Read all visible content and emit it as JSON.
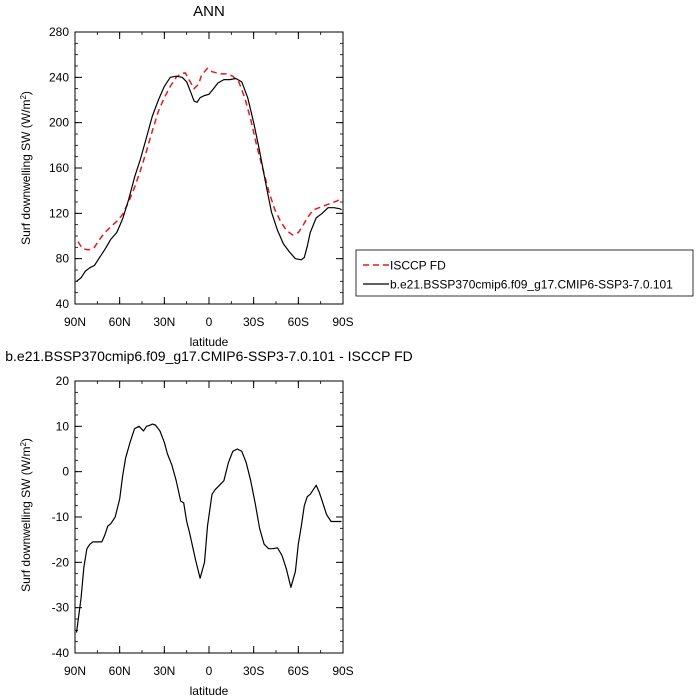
{
  "chart_data": [
    {
      "type": "line",
      "title": "ANN",
      "xlabel": "latitude",
      "ylabel": "Surf downwelling SW (W/m²)",
      "ylabel_main": "Surf downwelling SW (W/m",
      "ylabel_sup": "2",
      "ylabel_tail": ")",
      "xlim": [
        90,
        -90
      ],
      "ylim": [
        40,
        280
      ],
      "xticks": [
        90,
        60,
        30,
        0,
        -30,
        -60,
        -90
      ],
      "xtick_labels": [
        "90N",
        "60N",
        "30N",
        "0",
        "30S",
        "60S",
        "90S"
      ],
      "yticks": [
        40,
        80,
        120,
        160,
        200,
        240,
        280
      ],
      "ytick_labels": [
        "40",
        "80",
        "120",
        "160",
        "200",
        "240",
        "280"
      ],
      "legend_position": "right",
      "series": [
        {
          "name": "ISCCP FD",
          "color": "#e41a1c",
          "dash": "dashed",
          "x": [
            88,
            85,
            82,
            80,
            77,
            74,
            70,
            66,
            62,
            58,
            54,
            50,
            46,
            42,
            38,
            34,
            30,
            26,
            22,
            19,
            16,
            13,
            10,
            7,
            5,
            3,
            1,
            0,
            -2,
            -5,
            -8,
            -12,
            -16,
            -20,
            -24,
            -28,
            -32,
            -36,
            -40,
            -44,
            -48,
            -52,
            -56,
            -60,
            -63,
            -66,
            -70,
            -74,
            -78,
            -82,
            -86,
            -89
          ],
          "y": [
            95,
            89,
            88,
            88,
            90,
            96,
            103,
            108,
            113,
            119,
            130,
            143,
            158,
            175,
            193,
            210,
            222,
            232,
            240,
            243,
            244,
            237,
            230,
            234,
            242,
            245,
            248,
            247,
            245,
            244,
            243,
            243,
            241,
            236,
            222,
            203,
            180,
            160,
            140,
            124,
            113,
            105,
            101,
            103,
            109,
            116,
            123,
            125,
            127,
            129,
            131,
            133
          ]
        },
        {
          "name": "b.e21.BSSP370cmip6.f09_g17.CMIP6-SSP3-7.0.101",
          "color": "#000000",
          "dash": "solid",
          "x": [
            89,
            86,
            83,
            80,
            77,
            74,
            70,
            66,
            62,
            58,
            54,
            50,
            46,
            42,
            38,
            34,
            30,
            26,
            22,
            18,
            15,
            12,
            10,
            8,
            6,
            3,
            0,
            -3,
            -6,
            -10,
            -14,
            -18,
            -22,
            -26,
            -30,
            -34,
            -38,
            -42,
            -46,
            -50,
            -54,
            -58,
            -62,
            -64,
            -66,
            -68,
            -72,
            -76,
            -80,
            -84,
            -88,
            -89
          ],
          "y": [
            60,
            63,
            69,
            72,
            74,
            80,
            88,
            97,
            103,
            115,
            132,
            152,
            168,
            187,
            206,
            220,
            232,
            240,
            241,
            240,
            236,
            226,
            219,
            218,
            222,
            224,
            225,
            230,
            235,
            238,
            238,
            239,
            236,
            222,
            200,
            175,
            147,
            121,
            105,
            93,
            86,
            80,
            79,
            81,
            91,
            103,
            116,
            120,
            125,
            125,
            124,
            123
          ]
        }
      ]
    },
    {
      "type": "line",
      "title": "b.e21.BSSP370cmip6.f09_g17.CMIP6-SSP3-7.0.101 - ISCCP FD",
      "xlabel": "latitude",
      "ylabel": "Surf downwelling SW (W/m²)",
      "ylabel_main": "Surf downwelling SW (W/m",
      "ylabel_sup": "2",
      "ylabel_tail": ")",
      "xlim": [
        90,
        -90
      ],
      "ylim": [
        -40,
        20
      ],
      "xticks": [
        90,
        60,
        30,
        0,
        -30,
        -60,
        -90
      ],
      "xtick_labels": [
        "90N",
        "60N",
        "30N",
        "0",
        "30S",
        "60S",
        "90S"
      ],
      "yticks": [
        -40,
        -30,
        -20,
        -10,
        0,
        10,
        20
      ],
      "ytick_labels": [
        "-40",
        "-30",
        "-20",
        "-10",
        "0",
        "10",
        "20"
      ],
      "series": [
        {
          "color": "#000000",
          "dash": "solid",
          "x": [
            89,
            88,
            86,
            84,
            82,
            80,
            78,
            75,
            72,
            70,
            68,
            66,
            63,
            60,
            58,
            56,
            53,
            50,
            47,
            44,
            42,
            40,
            38,
            36,
            33,
            30,
            28,
            25,
            22,
            19,
            17,
            15,
            13,
            11,
            9,
            6,
            3,
            1,
            -2,
            -4,
            -7,
            -10,
            -13,
            -16,
            -19,
            -22,
            -25,
            -28,
            -31,
            -34,
            -37,
            -40,
            -43,
            -46,
            -49,
            -52,
            -55,
            -58,
            -60,
            -62,
            -64,
            -66,
            -68,
            -70,
            -72,
            -74,
            -76,
            -79,
            -82,
            -84,
            -86,
            -88,
            -89
          ],
          "y": [
            -35.5,
            -33,
            -28,
            -21,
            -17,
            -16,
            -15.5,
            -15.5,
            -15.5,
            -14,
            -12,
            -11.5,
            -10,
            -6,
            -1,
            3,
            6.5,
            9.5,
            10,
            9,
            10,
            10.2,
            10.5,
            10.3,
            9,
            6.5,
            4,
            1.5,
            -2,
            -6.5,
            -6.9,
            -11,
            -13.5,
            -16.5,
            -19.5,
            -23.5,
            -20,
            -12,
            -5,
            -4,
            -3,
            -2,
            2,
            4.5,
            5,
            4.5,
            2,
            -2,
            -7,
            -12.5,
            -16,
            -17,
            -17,
            -16.8,
            -18.5,
            -21.5,
            -25.5,
            -22,
            -16,
            -12,
            -7.5,
            -5.5,
            -5,
            -4,
            -3,
            -4.5,
            -6.5,
            -9.5,
            -11,
            -11,
            -11,
            -11,
            -11
          ]
        }
      ]
    }
  ]
}
